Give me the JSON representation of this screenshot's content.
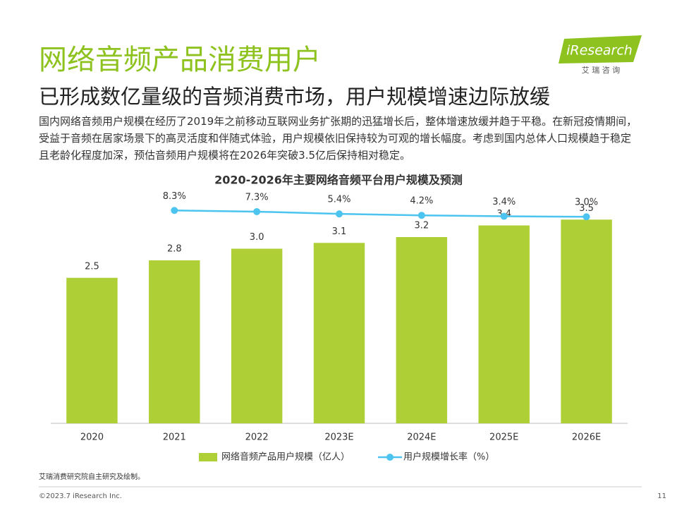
{
  "header": {
    "title": "网络音频产品消费用户",
    "subtitle": "已形成数亿量级的音频消费市场，用户规模增速边际放缓",
    "paragraph": "国内网络音频用户规模在经历了2019年之前移动互联网业务扩张期的迅猛增长后，整体增速放缓并趋于平稳。在新冠疫情期间，受益于音频在居家场景下的高灵活度和伴随式体验，用户规模依旧保持较为可观的增长幅度。考虑到国内总体人口规模趋于稳定且老龄化程度加深，预估音频用户规模将在2026年突破3.5亿后保持相对稳定。",
    "logo": "iResearch",
    "logo_sub": "艾 瑞 咨 询"
  },
  "chart_data": {
    "type": "bar_line",
    "title": "2020-2026年主要网络音频平台用户规模及预测",
    "categories": [
      "2020",
      "2021",
      "2022",
      "2023E",
      "2024E",
      "2025E",
      "2026E"
    ],
    "ylim": [
      0,
      4.0
    ],
    "y2lim": [
      -170,
      25
    ],
    "series": [
      {
        "name": "网络音频产品用户规模（亿人）",
        "type": "bar",
        "color": "#aecf35",
        "values": [
          2.5,
          2.8,
          3.0,
          3.1,
          3.2,
          3.4,
          3.5
        ],
        "value_labels": [
          "2.5",
          "2.8",
          "3.0",
          "3.1",
          "3.2",
          "3.4",
          "3.5"
        ]
      },
      {
        "name": "用户规模增长率（%）",
        "type": "line",
        "axis": "y2",
        "color": "#4cc4ef",
        "values": [
          null,
          8.3,
          7.3,
          5.4,
          4.2,
          3.4,
          3.0
        ],
        "value_labels": [
          null,
          "8.3%",
          "7.3%",
          "5.4%",
          "4.2%",
          "3.4%",
          "3.0%"
        ]
      }
    ]
  },
  "footer": {
    "source": "艾瑞消费研究院自主研究及绘制。",
    "copyright": "©2023.7 iResearch Inc.",
    "page": "11"
  }
}
